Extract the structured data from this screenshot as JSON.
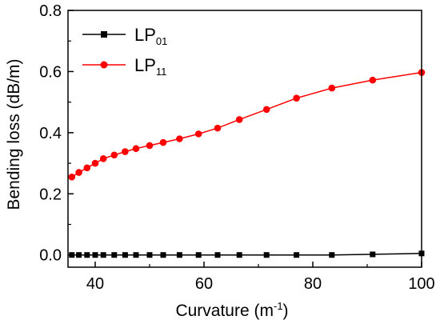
{
  "chart_data": {
    "type": "line",
    "xlabel": "Curvature (m",
    "xlabel_sup": "-1",
    "xlabel_tail": ")",
    "ylabel": "Bending loss (dB/m)",
    "xlim": [
      35,
      100
    ],
    "ylim": [
      -0.04,
      0.8
    ],
    "xticks": [
      40,
      60,
      80,
      100
    ],
    "xtick_labels": [
      "40",
      "60",
      "80",
      "100"
    ],
    "yticks": [
      0.0,
      0.2,
      0.4,
      0.6,
      0.8
    ],
    "ytick_labels": [
      "0.0",
      "0.2",
      "0.4",
      "0.6",
      "0.8"
    ],
    "grid": false,
    "legend_position": "top-left",
    "x": [
      35.7,
      37.0,
      38.5,
      40.0,
      41.5,
      43.5,
      45.5,
      47.5,
      50.0,
      52.5,
      55.5,
      59.0,
      62.5,
      66.5,
      71.5,
      77.0,
      83.5,
      91.0,
      100.0
    ],
    "series": [
      {
        "name": "LP",
        "name_sub": "01",
        "color": "#000000",
        "marker": "square",
        "values": [
          0.0,
          0.0,
          0.0,
          0.0,
          0.0,
          0.0,
          0.0,
          0.0,
          0.0,
          0.0,
          0.0,
          0.0,
          0.0,
          0.0,
          0.0,
          0.0,
          0.0,
          0.002,
          0.005
        ]
      },
      {
        "name": "LP",
        "name_sub": "11",
        "color": "#ff0000",
        "marker": "circle",
        "values": [
          0.255,
          0.27,
          0.285,
          0.3,
          0.315,
          0.327,
          0.338,
          0.348,
          0.358,
          0.368,
          0.38,
          0.396,
          0.415,
          0.443,
          0.476,
          0.513,
          0.546,
          0.572,
          0.597
        ]
      }
    ]
  }
}
